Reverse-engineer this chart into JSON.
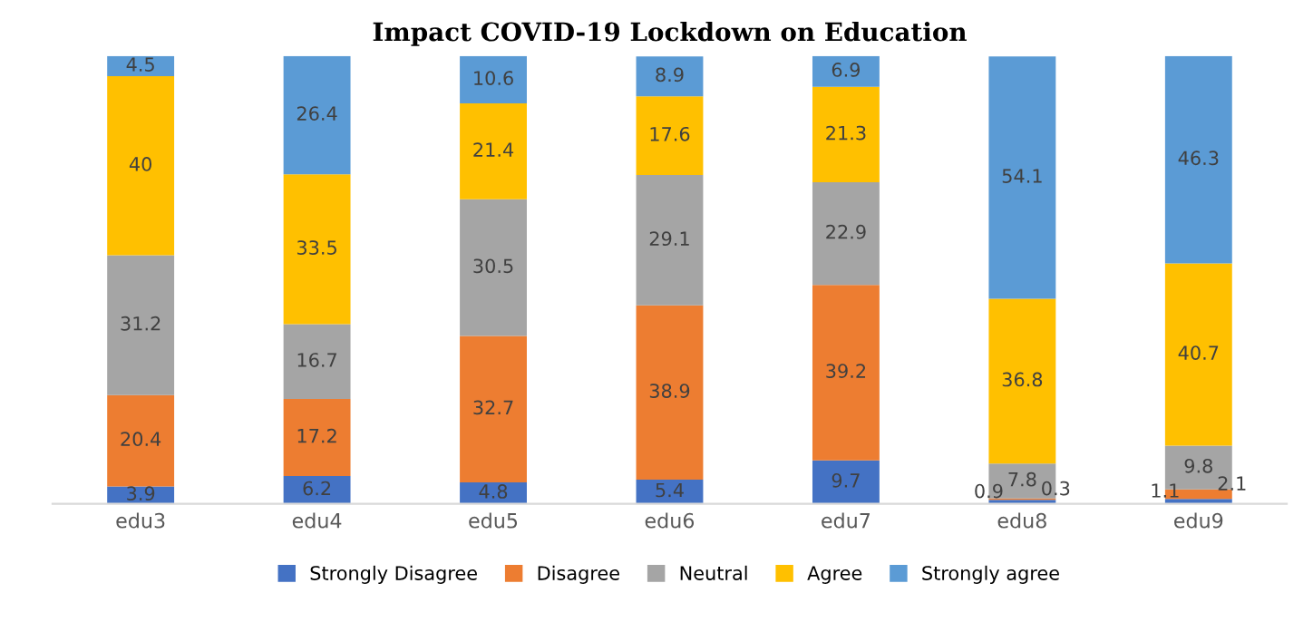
{
  "chart_data": {
    "type": "bar",
    "title": "Impact COVID-19 Lockdown on Education",
    "categories": [
      "edu3",
      "edu4",
      "edu5",
      "edu6",
      "edu7",
      "edu8",
      "edu9"
    ],
    "stacked": true,
    "data_labels": true,
    "legend": "bottom",
    "series": [
      {
        "name": "Strongly Disagree",
        "color": "#4472c4",
        "values": [
          3.9,
          6.2,
          4.8,
          5.4,
          9.7,
          0.9,
          1.1
        ]
      },
      {
        "name": "Disagree",
        "color": "#ed7d31",
        "values": [
          20.4,
          17.2,
          32.7,
          38.9,
          39.2,
          0.3,
          2.1
        ]
      },
      {
        "name": "Neutral",
        "color": "#a5a5a5",
        "values": [
          31.2,
          16.7,
          30.5,
          29.1,
          22.9,
          7.8,
          9.8
        ]
      },
      {
        "name": "Agree",
        "color": "#ffc000",
        "values": [
          40,
          33.5,
          21.4,
          17.6,
          21.3,
          36.8,
          40.7
        ]
      },
      {
        "name": "Strongly agree",
        "color": "#5b9bd5",
        "values": [
          4.5,
          26.4,
          10.6,
          8.9,
          6.9,
          54.1,
          46.3
        ]
      }
    ]
  }
}
